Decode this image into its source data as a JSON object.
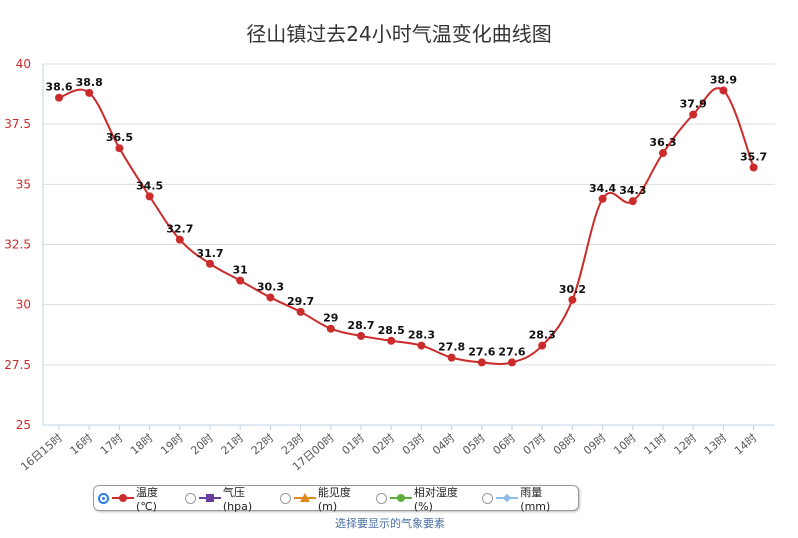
{
  "title": "径山镇过去24小时气温变化曲线图",
  "legend": {
    "items": [
      {
        "label": "温度 (℃)",
        "color": "#cc2b2b",
        "marker": "circle",
        "selected": true
      },
      {
        "label": "气压 (hpa)",
        "color": "#6a3d9a",
        "marker": "square",
        "selected": false
      },
      {
        "label": "能见度 (m)",
        "color": "#e08a1e",
        "marker": "triangle",
        "selected": false
      },
      {
        "label": "相对湿度 (%)",
        "color": "#5fae3c",
        "marker": "circle",
        "selected": false
      },
      {
        "label": "雨量 (mm)",
        "color": "#8fbde6",
        "marker": "diamond",
        "selected": false
      }
    ],
    "caption": "选择要显示的气象要素"
  },
  "chart_data": {
    "type": "line",
    "title": "径山镇过去24小时气温变化曲线图",
    "xlabel": "",
    "ylabel": "",
    "categories": [
      "16日15时",
      "16时",
      "17时",
      "18时",
      "19时",
      "20时",
      "21时",
      "22时",
      "23时",
      "17日00时",
      "01时",
      "02时",
      "03时",
      "04时",
      "05时",
      "06时",
      "07时",
      "08时",
      "09时",
      "10时",
      "11时",
      "12时",
      "13时",
      "14时"
    ],
    "series": [
      {
        "name": "温度 (℃)",
        "color": "#cc2b2b",
        "values": [
          38.6,
          38.8,
          36.5,
          34.5,
          32.7,
          31.7,
          31,
          30.3,
          29.7,
          29,
          28.7,
          28.5,
          28.3,
          27.8,
          27.6,
          27.6,
          28.3,
          30.2,
          34.4,
          34.3,
          36.3,
          37.9,
          38.9,
          35.7
        ],
        "labels": [
          "38.6",
          "38.8",
          "36.5",
          "34.5",
          "32.7",
          "31.7",
          "31",
          "30.3",
          "29.7",
          "29",
          "28.7",
          "28.5",
          "28.3",
          "27.8",
          "27.6",
          "27.6",
          "28.3",
          "30.2",
          "34.4",
          "34.3",
          "36.3",
          "37.9",
          "38.9",
          "35.7"
        ]
      }
    ],
    "ylim": [
      25,
      40
    ],
    "yticks": [
      "25",
      "27.5",
      "30",
      "32.5",
      "35",
      "37.5",
      "40"
    ],
    "grid": true,
    "legend_position": "bottom"
  }
}
